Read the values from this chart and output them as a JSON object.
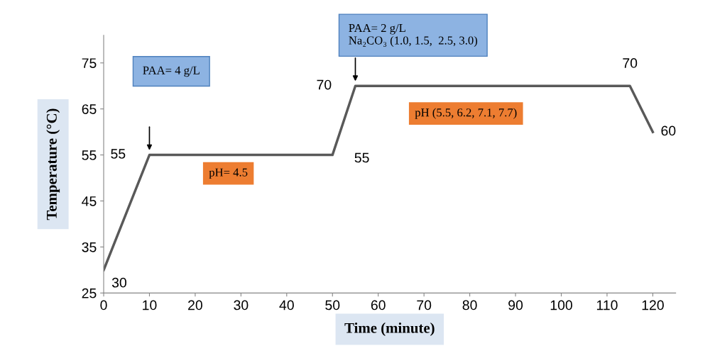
{
  "chart_data": {
    "type": "line",
    "xlabel": "Time (minute)",
    "ylabel": "Temperature (°C)",
    "x": [
      0,
      10,
      50,
      55,
      115,
      120
    ],
    "series": [
      {
        "color": "#595959",
        "values": [
          30,
          55,
          55,
          70,
          70,
          60
        ]
      }
    ],
    "data_labels": true,
    "xlim": [
      0,
      125
    ],
    "xticks": [
      0,
      10,
      20,
      30,
      40,
      50,
      60,
      70,
      80,
      90,
      100,
      110,
      120
    ],
    "ylim": [
      25,
      81
    ],
    "yticks": [
      25,
      35,
      45,
      55,
      65,
      75
    ],
    "grid": false,
    "marker": "none",
    "line_style": "solid",
    "annotations": [
      "PAA= 4 g/L",
      "PAA= 2 g/L\nNa₂CO₃ (1.0, 1.5,  2.5, 3.0)",
      "pH= 4.5",
      "pH (5.5, 6.2, 7.1, 7.7)"
    ]
  }
}
